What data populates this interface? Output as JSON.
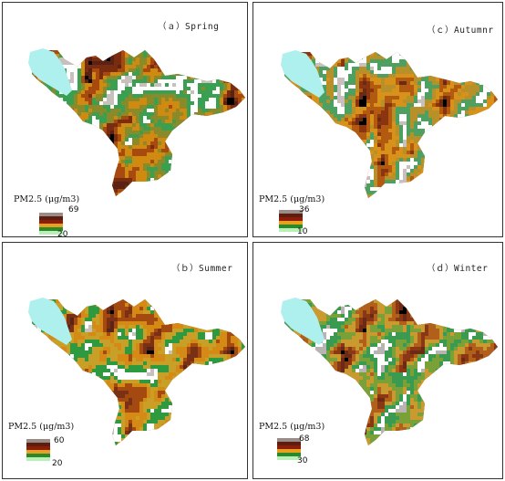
{
  "panels": [
    {
      "id": "spring",
      "title": "（ａ）Spring",
      "legend_title": "PM2.5 (μg/m3)",
      "legend_max": "69",
      "legend_min": "20",
      "colors": [
        "#5a2214",
        "#7a2c10",
        "#a84a10",
        "#d08a10",
        "#8a8a2a",
        "#38a050",
        "#ffffff",
        "#c8c0bc"
      ]
    },
    {
      "id": "autumn",
      "title": "（ｃ）Autumnr",
      "legend_title": "PM2.5 (μg/m3)",
      "legend_max": "36",
      "legend_min": "10",
      "colors": [
        "#6a2a14",
        "#8a3410",
        "#b25a10",
        "#d8921a",
        "#b8902a",
        "#4ea060",
        "#ffffff",
        "#c8c0bc"
      ]
    },
    {
      "id": "summer",
      "title": "（ｂ）Summer",
      "legend_title": "PM2.5 (μg/m3)",
      "legend_max": "60",
      "legend_min": "20",
      "colors": [
        "#5a2418",
        "#7a3014",
        "#a44a10",
        "#d48a14",
        "#c8a028",
        "#2e9a40",
        "#ffffff",
        "#c8c0bc"
      ]
    },
    {
      "id": "winter",
      "title": "（ｄ）Winter",
      "legend_title": "PM2.5 (μg/m3)",
      "legend_max": "68",
      "legend_min": "30",
      "colors": [
        "#6a2a16",
        "#8a3814",
        "#b0601a",
        "#c89a30",
        "#7aa038",
        "#3a9a50",
        "#ffffff",
        "#b8b4b4"
      ]
    }
  ],
  "legend_colors": [
    "#ffffff",
    "#9a8c86",
    "#5c1e10",
    "#8c1e08",
    "#e8a020",
    "#2a8a2a",
    "#b8f0b8"
  ],
  "lake_color": "#aef0ee"
}
